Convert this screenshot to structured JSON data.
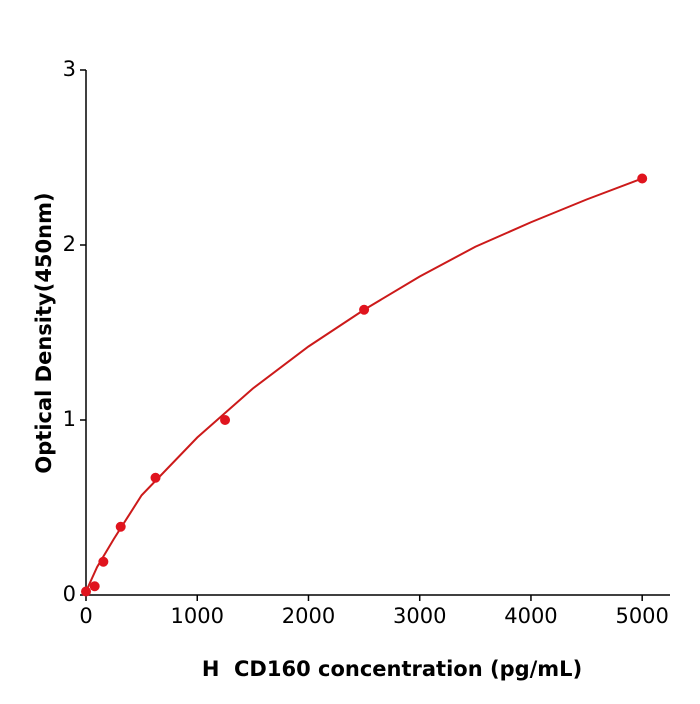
{
  "chart_data": {
    "type": "scatter",
    "x_label": "H  CD160 concentration (pg/mL)",
    "y_label": "Optical Density(450nm)",
    "xlim": [
      0,
      5250
    ],
    "ylim": [
      0,
      3
    ],
    "xticks": [
      0,
      1000,
      2000,
      3000,
      4000,
      5000
    ],
    "yticks": [
      0,
      1,
      2,
      3
    ],
    "series": [
      {
        "kind": "points",
        "color": "#e0141e",
        "x": [
          0,
          78,
          156,
          312,
          625,
          1250,
          2500,
          5000
        ],
        "values": [
          0.02,
          0.05,
          0.19,
          0.39,
          0.67,
          1.0,
          1.63,
          2.38
        ]
      },
      {
        "kind": "line",
        "color": "#cc1a1a",
        "x": [
          0,
          100,
          250,
          500,
          1000,
          1500,
          2000,
          2500,
          3000,
          3500,
          4000,
          4500,
          5000
        ],
        "values": [
          0.02,
          0.16,
          0.32,
          0.57,
          0.9,
          1.18,
          1.42,
          1.63,
          1.82,
          1.99,
          2.13,
          2.26,
          2.38
        ]
      }
    ]
  }
}
